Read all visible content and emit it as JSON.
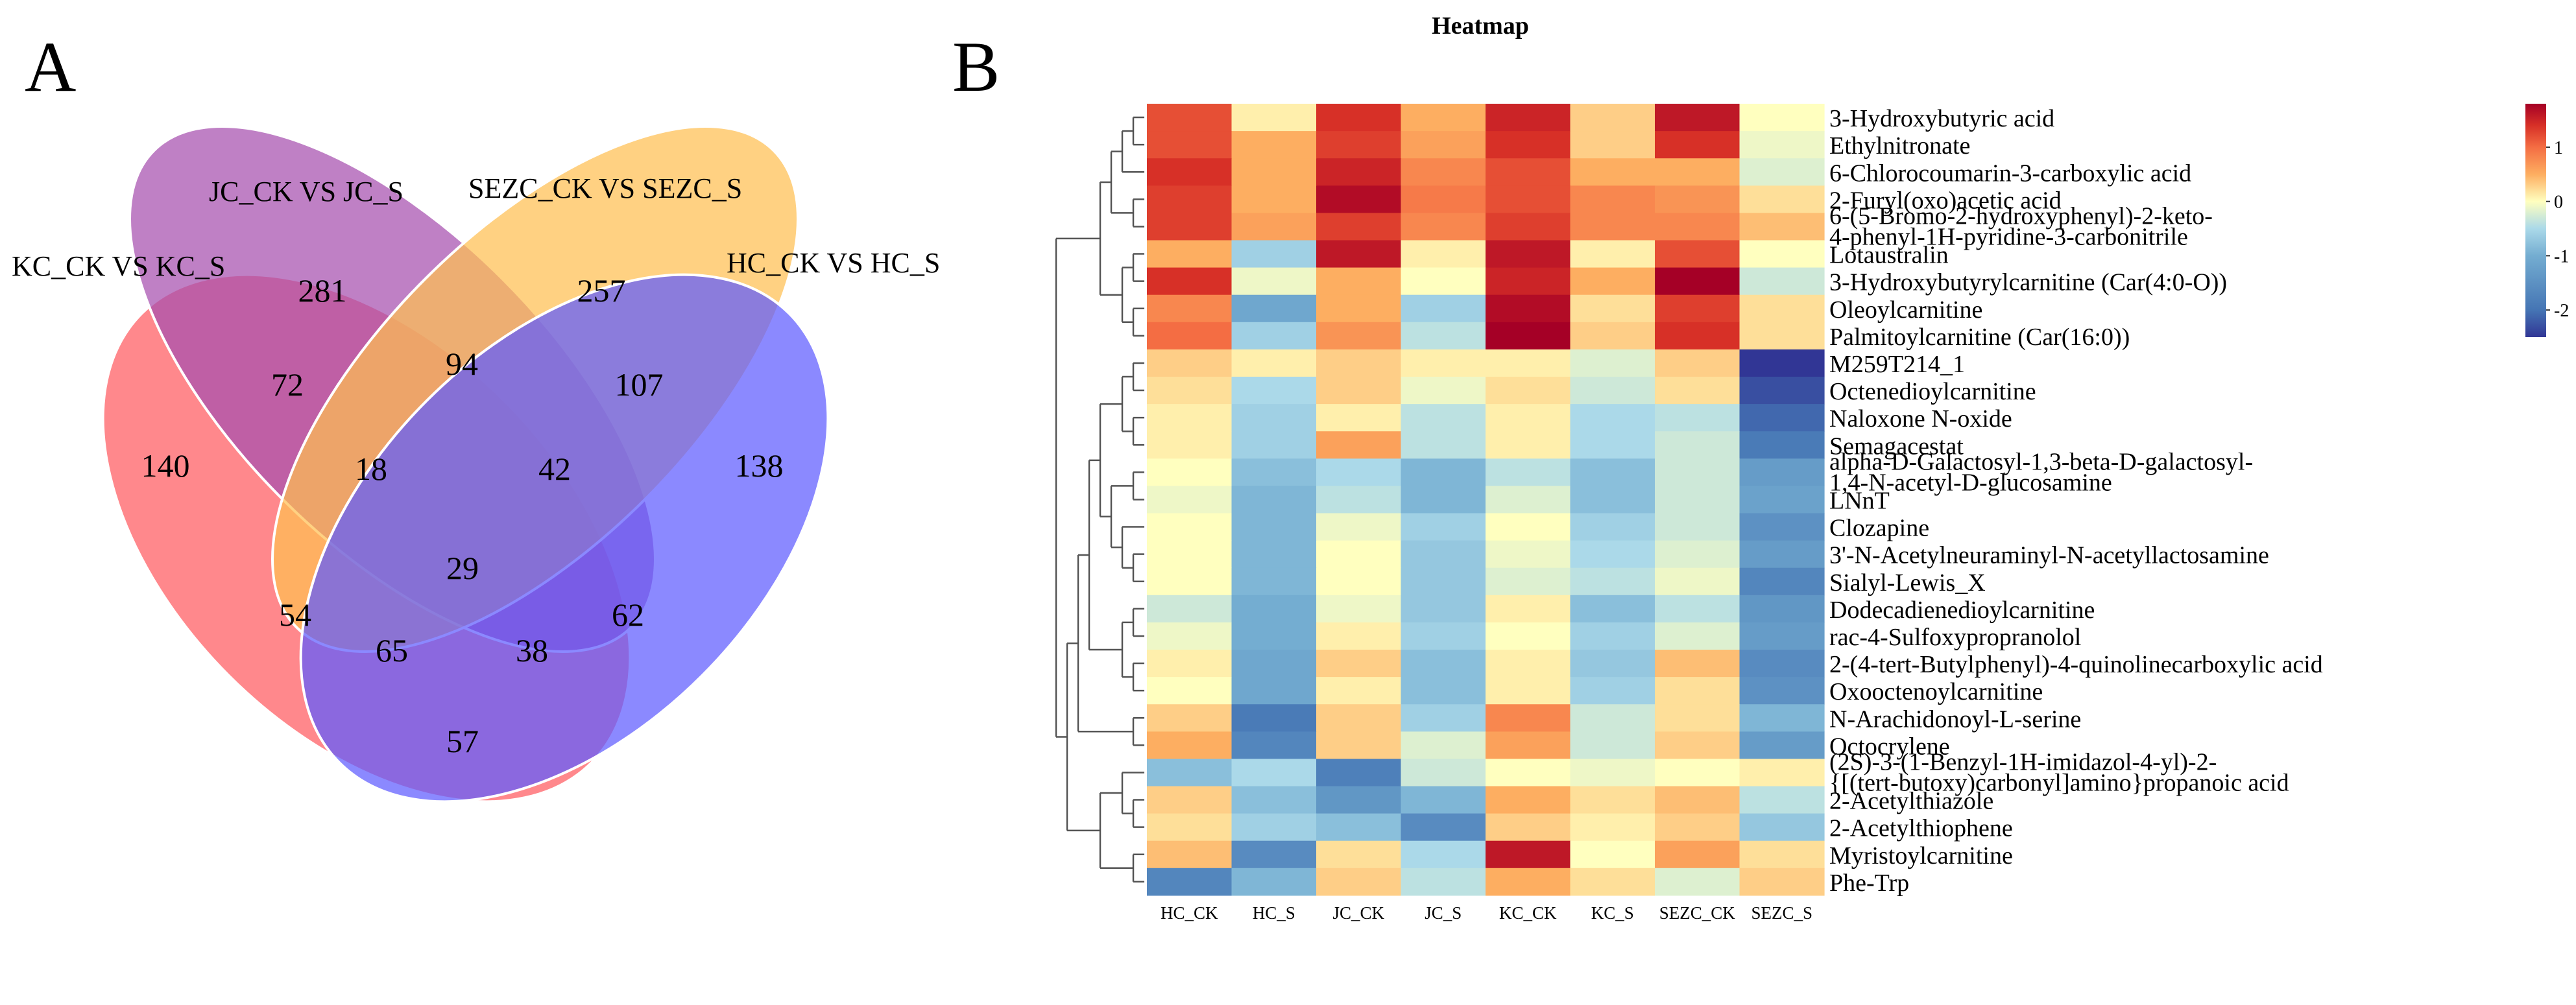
{
  "panel_a": {
    "letter": "A",
    "sets": [
      {
        "label": "KC_CK VS KC_S",
        "color": "#ff5a5f"
      },
      {
        "label": "JC_CK VS JC_S",
        "color": "#a64fae"
      },
      {
        "label": "SEZC_CK VS SEZC_S",
        "color": "#ffbf52"
      },
      {
        "label": "HC_CK VS HC_S",
        "color": "#5e5cff"
      }
    ],
    "regions": {
      "KC_only": 140,
      "JC_only": 281,
      "SEZC_only": 257,
      "HC_only": 138,
      "KC_JC": 72,
      "JC_SEZC": 94,
      "SEZC_HC": 107,
      "KC_JC_SEZC": 18,
      "JC_SEZC_HC": 42,
      "all_four": 29,
      "KC_SEZC": 54,
      "JC_HC": 62,
      "KC_SEZC_HC": 65,
      "KC_JC_HC": 38,
      "KC_HC": 57
    }
  },
  "panel_b": {
    "letter": "B"
  },
  "chart_data": {
    "type": "heatmap",
    "title": "Heatmap",
    "columns": [
      "HC_CK",
      "HC_S",
      "JC_CK",
      "JC_S",
      "KC_CK",
      "KC_S",
      "SEZC_CK",
      "SEZC_S"
    ],
    "rows": [
      {
        "name": "3-Hydroxybutyric acid",
        "values": [
          1.2,
          0.1,
          1.4,
          0.5,
          1.5,
          0.3,
          1.6,
          0.0
        ]
      },
      {
        "name": "Ethylnitronate",
        "values": [
          1.2,
          0.5,
          1.3,
          0.6,
          1.4,
          0.3,
          1.4,
          -0.1
        ]
      },
      {
        "name": "6-Chlorocoumarin-3-carboxylic acid",
        "values": [
          1.4,
          0.5,
          1.5,
          0.8,
          1.2,
          0.5,
          0.5,
          -0.2
        ]
      },
      {
        "name": "2-Furyl(oxo)acetic acid",
        "values": [
          1.3,
          0.5,
          1.7,
          0.9,
          1.2,
          0.8,
          0.7,
          0.2
        ]
      },
      {
        "name": "6-(5-Bromo-2-hydroxyphenyl)-2-keto-4-phenyl-1H-pyridine-3-carbonitrile",
        "values": [
          1.3,
          0.6,
          1.3,
          0.8,
          1.3,
          0.8,
          0.8,
          0.4
        ]
      },
      {
        "name": "Lotaustralin",
        "values": [
          0.5,
          -0.6,
          1.6,
          0.1,
          1.6,
          0.1,
          1.2,
          0.0
        ]
      },
      {
        "name": "3-Hydroxybutyrylcarnitine (Car(4:0-O))",
        "values": [
          1.4,
          -0.1,
          0.5,
          0.0,
          1.5,
          0.5,
          1.8,
          -0.3
        ]
      },
      {
        "name": "Oleoylcarnitine",
        "values": [
          0.8,
          -1.1,
          0.5,
          -0.6,
          1.7,
          0.2,
          1.3,
          0.2
        ]
      },
      {
        "name": "Palmitoylcarnitine (Car(16:0))",
        "values": [
          1.0,
          -0.6,
          0.7,
          -0.4,
          1.8,
          0.3,
          1.4,
          0.2
        ]
      },
      {
        "name": "M259T214_1",
        "values": [
          0.3,
          0.1,
          0.3,
          0.1,
          0.1,
          -0.2,
          0.3,
          -2.5
        ]
      },
      {
        "name": "Octenedioylcarnitine",
        "values": [
          0.2,
          -0.5,
          0.3,
          -0.1,
          0.2,
          -0.3,
          0.2,
          -2.3
        ]
      },
      {
        "name": "Naloxone N-oxide",
        "values": [
          0.1,
          -0.6,
          0.1,
          -0.4,
          0.1,
          -0.5,
          -0.4,
          -2.1
        ]
      },
      {
        "name": "Semagacestat",
        "values": [
          0.1,
          -0.6,
          0.6,
          -0.4,
          0.1,
          -0.5,
          -0.3,
          -1.9
        ]
      },
      {
        "name": "alpha-D-Galactosyl-1,3-beta-D-galactosyl-1,4-N-acetyl-D-glucosamine",
        "values": [
          0.0,
          -0.8,
          -0.5,
          -0.9,
          -0.4,
          -0.8,
          -0.3,
          -1.3
        ]
      },
      {
        "name": "LNnT",
        "values": [
          -0.1,
          -0.9,
          -0.4,
          -0.9,
          -0.2,
          -0.8,
          -0.3,
          -1.2
        ]
      },
      {
        "name": "Clozapine",
        "values": [
          0.0,
          -0.9,
          -0.1,
          -0.6,
          0.0,
          -0.6,
          -0.3,
          -1.5
        ]
      },
      {
        "name": "3'-N-Acetylneuraminyl-N-acetyllactosamine",
        "values": [
          0.0,
          -0.9,
          0.0,
          -0.7,
          -0.1,
          -0.5,
          -0.2,
          -1.3
        ]
      },
      {
        "name": "Sialyl-Lewis_X",
        "values": [
          0.0,
          -0.9,
          0.0,
          -0.7,
          -0.2,
          -0.4,
          -0.1,
          -1.7
        ]
      },
      {
        "name": "Dodecadienedioylcarnitine",
        "values": [
          -0.3,
          -1.0,
          -0.1,
          -0.7,
          0.1,
          -0.8,
          -0.4,
          -1.4
        ]
      },
      {
        "name": "rac-4-Sulfoxypropranolol",
        "values": [
          -0.1,
          -1.0,
          0.1,
          -0.6,
          0.0,
          -0.6,
          -0.2,
          -1.3
        ]
      },
      {
        "name": "2-(4-tert-Butylphenyl)-4-quinolinecarboxylic acid",
        "values": [
          0.1,
          -1.1,
          0.3,
          -0.8,
          0.1,
          -0.7,
          0.4,
          -1.6
        ]
      },
      {
        "name": "Oxooctenoylcarnitine",
        "values": [
          0.0,
          -1.1,
          0.1,
          -0.8,
          0.1,
          -0.6,
          0.2,
          -1.5
        ]
      },
      {
        "name": "N-Arachidonoyl-L-serine",
        "values": [
          0.3,
          -1.9,
          0.3,
          -0.6,
          0.8,
          -0.3,
          0.2,
          -0.9
        ]
      },
      {
        "name": "Octocrylene",
        "values": [
          0.5,
          -1.7,
          0.3,
          -0.2,
          0.6,
          -0.3,
          0.3,
          -1.3
        ]
      },
      {
        "name": "(2S)-3-(1-Benzyl-1H-imidazol-4-yl)-2-{[(tert-butoxy)carbonyl]amino}propanoic acid",
        "values": [
          -0.8,
          -0.5,
          -1.8,
          -0.3,
          0.0,
          -0.1,
          0.0,
          0.1
        ]
      },
      {
        "name": "2-Acetylthiazole",
        "values": [
          0.3,
          -0.8,
          -1.4,
          -0.9,
          0.5,
          0.2,
          0.4,
          -0.4
        ]
      },
      {
        "name": "2-Acetylthiophene",
        "values": [
          0.2,
          -0.6,
          -0.8,
          -1.6,
          0.3,
          0.1,
          0.3,
          -0.7
        ]
      },
      {
        "name": "Myristoylcarnitine",
        "values": [
          0.4,
          -1.6,
          0.2,
          -0.5,
          1.6,
          0.0,
          0.6,
          0.2
        ]
      },
      {
        "name": "Phe-Trp",
        "values": [
          -1.7,
          -0.9,
          0.3,
          -0.4,
          0.5,
          0.2,
          -0.2,
          0.3
        ]
      }
    ],
    "row_labels_display": [
      [
        "3-Hydroxybutyric acid"
      ],
      [
        "Ethylnitronate"
      ],
      [
        "6-Chlorocoumarin-3-carboxylic acid"
      ],
      [
        "2-Furyl(oxo)acetic acid"
      ],
      [
        "6-(5-Bromo-2-hydroxyphenyl)-2-keto-",
        "4-phenyl-1H-pyridine-3-carbonitrile"
      ],
      [
        "Lotaustralin"
      ],
      [
        "3-Hydroxybutyrylcarnitine (Car(4:0-O))"
      ],
      [
        "Oleoylcarnitine"
      ],
      [
        "Palmitoylcarnitine (Car(16:0))"
      ],
      [
        "M259T214_1"
      ],
      [
        "Octenedioylcarnitine"
      ],
      [
        "Naloxone N-oxide"
      ],
      [
        "Semagacestat"
      ],
      [
        "alpha-D-Galactosyl-1,3-beta-D-galactosyl-",
        "1,4-N-acetyl-D-glucosamine"
      ],
      [
        "LNnT"
      ],
      [
        "Clozapine"
      ],
      [
        "3'-N-Acetylneuraminyl-N-acetyllactosamine"
      ],
      [
        "Sialyl-Lewis_X"
      ],
      [
        "Dodecadienedioylcarnitine"
      ],
      [
        "rac-4-Sulfoxypropranolol"
      ],
      [
        "2-(4-tert-Butylphenyl)-4-quinolinecarboxylic acid"
      ],
      [
        "Oxooctenoylcarnitine"
      ],
      [
        "N-Arachidonoyl-L-serine"
      ],
      [
        "Octocrylene"
      ],
      [
        "(2S)-3-(1-Benzyl-1H-imidazol-4-yl)-2-",
        "{[(tert-butoxy)carbonyl]amino}propanoic acid"
      ],
      [
        "2-Acetylthiazole"
      ],
      [
        "2-Acetylthiophene"
      ],
      [
        "Myristoylcarnitine"
      ],
      [
        "Phe-Trp"
      ]
    ],
    "color_scale": {
      "min": -2.5,
      "max": 1.8,
      "stops": [
        {
          "value": -2.5,
          "color": "#313695"
        },
        {
          "value": -2.0,
          "color": "#4575b4"
        },
        {
          "value": -1.0,
          "color": "#74add1"
        },
        {
          "value": -0.5,
          "color": "#abd9e9"
        },
        {
          "value": 0.0,
          "color": "#ffffbf"
        },
        {
          "value": 0.5,
          "color": "#fdae61"
        },
        {
          "value": 1.0,
          "color": "#f46d43"
        },
        {
          "value": 1.4,
          "color": "#d73027"
        },
        {
          "value": 1.8,
          "color": "#a50026"
        }
      ],
      "legend_ticks": [
        "1",
        "0",
        "-1",
        "-2"
      ],
      "legend_tick_values": [
        1,
        0,
        -1,
        -2
      ]
    }
  }
}
